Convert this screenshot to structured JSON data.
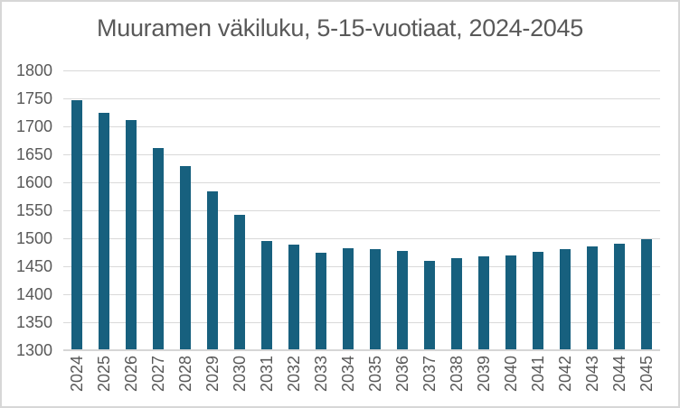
{
  "chart_data": {
    "type": "bar",
    "title": "Muuramen väkiluku, 5-15-vuotiaat, 2024-2045",
    "categories": [
      "2024",
      "2025",
      "2026",
      "2027",
      "2028",
      "2029",
      "2030",
      "2031",
      "2032",
      "2033",
      "2034",
      "2035",
      "2036",
      "2037",
      "2038",
      "2039",
      "2040",
      "2041",
      "2042",
      "2043",
      "2044",
      "2045"
    ],
    "values": [
      1746,
      1725,
      1711,
      1661,
      1629,
      1584,
      1542,
      1495,
      1488,
      1475,
      1482,
      1480,
      1477,
      1460,
      1464,
      1468,
      1470,
      1476,
      1480,
      1486,
      1491,
      1498
    ],
    "xlabel": "",
    "ylabel": "",
    "ylim": [
      1300,
      1800
    ],
    "y_ticks": [
      1300,
      1350,
      1400,
      1450,
      1500,
      1550,
      1600,
      1650,
      1700,
      1750,
      1800
    ],
    "grid": true,
    "legend": "none",
    "colors": {
      "bar": "#17607E",
      "gridline": "#d9d9d9",
      "axis_line": "#d6d6d6",
      "text": "#595959",
      "title": "#595959",
      "background": "#ffffff",
      "border": "#d7d7d7"
    }
  }
}
